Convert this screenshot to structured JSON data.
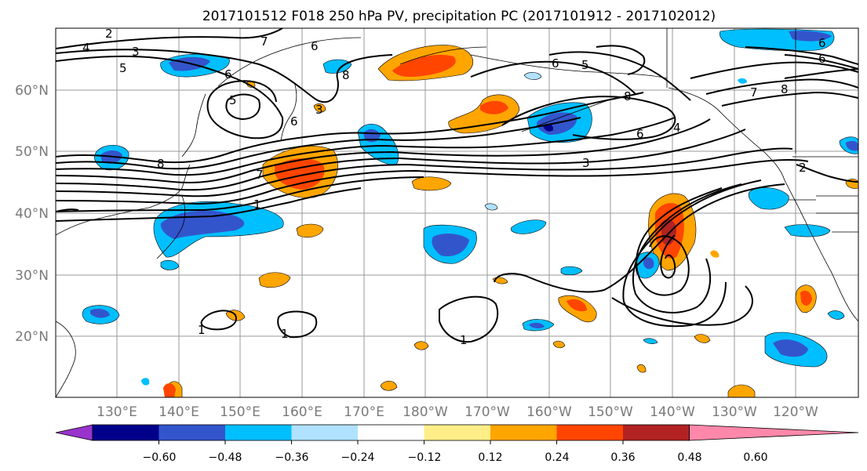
{
  "title": "2017101512 F018 250 hPa PV, precipitation PC (2017101912 - 2017102012)",
  "lat_labels": [
    "60°N",
    "50°N",
    "40°N",
    "30°N",
    "20°N"
  ],
  "lon_labels": [
    "130°E",
    "140°E",
    "150°E",
    "160°E",
    "170°E",
    "180°W",
    "170°W",
    "160°W",
    "150°W",
    "140°W",
    "130°W",
    "120°W"
  ],
  "colorbar": {
    "colors": [
      "#9933cc",
      "#00008b",
      "#3355cc",
      "#00bfff",
      "#b0e2ff",
      "#ffffff",
      "#ffee88",
      "#ffa500",
      "#ff4500",
      "#b22222",
      "#ff88aa"
    ],
    "ticks": [
      "−0.60",
      "−0.48",
      "−0.36",
      "−0.24",
      "−0.12",
      "0.12",
      "0.24",
      "0.36",
      "0.48",
      "0.60"
    ]
  },
  "contour_labels": [
    "2",
    "4",
    "3",
    "5",
    "6",
    "7",
    "6",
    "8",
    "5",
    "6",
    "3",
    "8",
    "7",
    "6",
    "5",
    "6",
    "6",
    "7",
    "8",
    "8",
    "4",
    "6",
    "3",
    "2",
    "1",
    "1",
    "1",
    "1"
  ]
}
